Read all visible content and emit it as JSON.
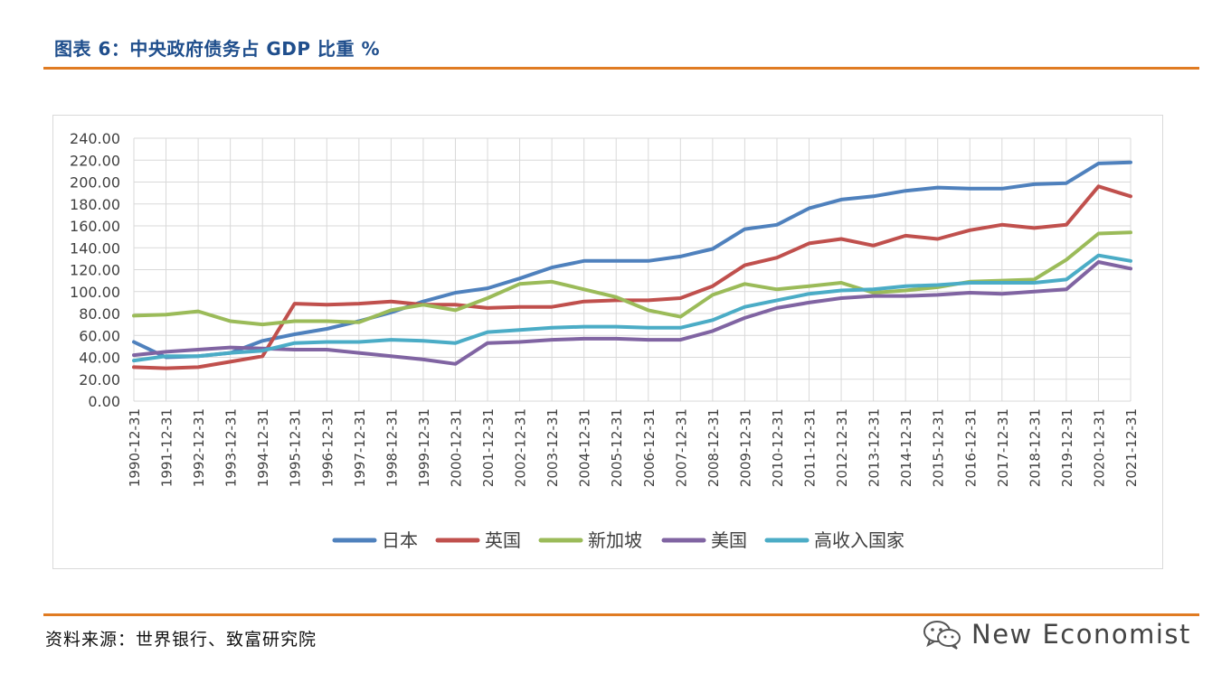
{
  "figure": {
    "title": "图表 6：中央政府债务占 GDP 比重 %",
    "source": "资料来源：世界银行、致富研究院",
    "watermark": "New Economist"
  },
  "colors": {
    "title": "#1F4E8C",
    "rule": "#E07B22",
    "grid": "#d9d9d9"
  },
  "chart_data": {
    "type": "line",
    "title": "",
    "xlabel": "",
    "ylabel": "",
    "ylim": [
      0,
      240
    ],
    "yticks": [
      "0.00",
      "20.00",
      "40.00",
      "60.00",
      "80.00",
      "100.00",
      "120.00",
      "140.00",
      "160.00",
      "180.00",
      "200.00",
      "220.00",
      "240.00"
    ],
    "grid": true,
    "legend_position": "bottom",
    "categories": [
      "1990-12-31",
      "1991-12-31",
      "1992-12-31",
      "1993-12-31",
      "1994-12-31",
      "1995-12-31",
      "1996-12-31",
      "1997-12-31",
      "1998-12-31",
      "1999-12-31",
      "2000-12-31",
      "2001-12-31",
      "2002-12-31",
      "2003-12-31",
      "2004-12-31",
      "2005-12-31",
      "2006-12-31",
      "2007-12-31",
      "2008-12-31",
      "2009-12-31",
      "2010-12-31",
      "2011-12-31",
      "2012-12-31",
      "2013-12-31",
      "2014-12-31",
      "2015-12-31",
      "2016-12-31",
      "2017-12-31",
      "2018-12-31",
      "2019-12-31",
      "2020-12-31",
      "2021-12-31"
    ],
    "series": [
      {
        "name": "日本",
        "color": "#4F81BD",
        "values": [
          54,
          40,
          41,
          44,
          55,
          61,
          66,
          73,
          81,
          91,
          99,
          103,
          112,
          122,
          128,
          128,
          128,
          132,
          139,
          157,
          161,
          176,
          184,
          187,
          192,
          195,
          194,
          194,
          198,
          199,
          217,
          218
        ]
      },
      {
        "name": "英国",
        "color": "#C0504D",
        "values": [
          31,
          30,
          31,
          36,
          41,
          89,
          88,
          89,
          91,
          88,
          88,
          85,
          86,
          86,
          91,
          92,
          92,
          94,
          105,
          124,
          131,
          144,
          148,
          142,
          151,
          148,
          156,
          161,
          158,
          161,
          196,
          187
        ]
      },
      {
        "name": "新加坡",
        "color": "#9BBB59",
        "values": [
          78,
          79,
          82,
          73,
          70,
          73,
          73,
          72,
          83,
          88,
          83,
          94,
          107,
          109,
          102,
          95,
          83,
          77,
          97,
          107,
          102,
          105,
          108,
          99,
          101,
          104,
          109,
          110,
          111,
          129,
          153,
          154
        ]
      },
      {
        "name": "美国",
        "color": "#8064A2",
        "values": [
          42,
          45,
          47,
          49,
          48,
          47,
          47,
          44,
          41,
          38,
          34,
          53,
          54,
          56,
          57,
          57,
          56,
          56,
          64,
          76,
          85,
          90,
          94,
          96,
          96,
          97,
          99,
          98,
          100,
          102,
          127,
          121
        ]
      },
      {
        "name": "高收入国家",
        "color": "#4BACC6",
        "values": [
          37,
          41,
          41,
          44,
          46,
          53,
          54,
          54,
          56,
          55,
          53,
          63,
          65,
          67,
          68,
          68,
          67,
          67,
          74,
          86,
          92,
          98,
          101,
          102,
          105,
          106,
          108,
          108,
          108,
          111,
          133,
          128
        ]
      }
    ]
  }
}
